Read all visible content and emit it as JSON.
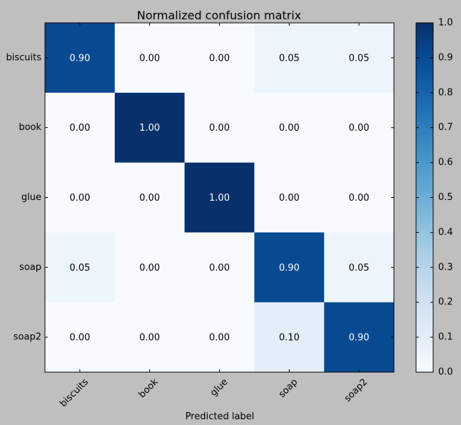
{
  "chart_data": {
    "type": "heatmap",
    "title": "Normalized confusion matrix",
    "xlabel": "Predicted label",
    "ylabel": "",
    "x_categories": [
      "biscuits",
      "book",
      "glue",
      "soap",
      "soap2"
    ],
    "y_categories": [
      "biscuits",
      "book",
      "glue",
      "soap",
      "soap2"
    ],
    "values": [
      [
        0.9,
        0.0,
        0.0,
        0.05,
        0.05
      ],
      [
        0.0,
        1.0,
        0.0,
        0.0,
        0.0
      ],
      [
        0.0,
        0.0,
        1.0,
        0.0,
        0.0
      ],
      [
        0.05,
        0.0,
        0.0,
        0.9,
        0.05
      ],
      [
        0.0,
        0.0,
        0.0,
        0.1,
        0.9
      ]
    ],
    "cell_labels": [
      [
        "0.90",
        "0.00",
        "0.00",
        "0.05",
        "0.05"
      ],
      [
        "0.00",
        "1.00",
        "0.00",
        "0.00",
        "0.00"
      ],
      [
        "0.00",
        "0.00",
        "1.00",
        "0.00",
        "0.00"
      ],
      [
        "0.05",
        "0.00",
        "0.00",
        "0.90",
        "0.05"
      ],
      [
        "0.00",
        "0.00",
        "0.00",
        "0.10",
        "0.90"
      ]
    ],
    "colormap": "Blues",
    "color_range": [
      0.0,
      1.0
    ],
    "colorbar_ticks": [
      "0.0",
      "0.1",
      "0.2",
      "0.3",
      "0.4",
      "0.5",
      "0.6",
      "0.7",
      "0.8",
      "0.9",
      "1.0"
    ],
    "grid": false
  }
}
